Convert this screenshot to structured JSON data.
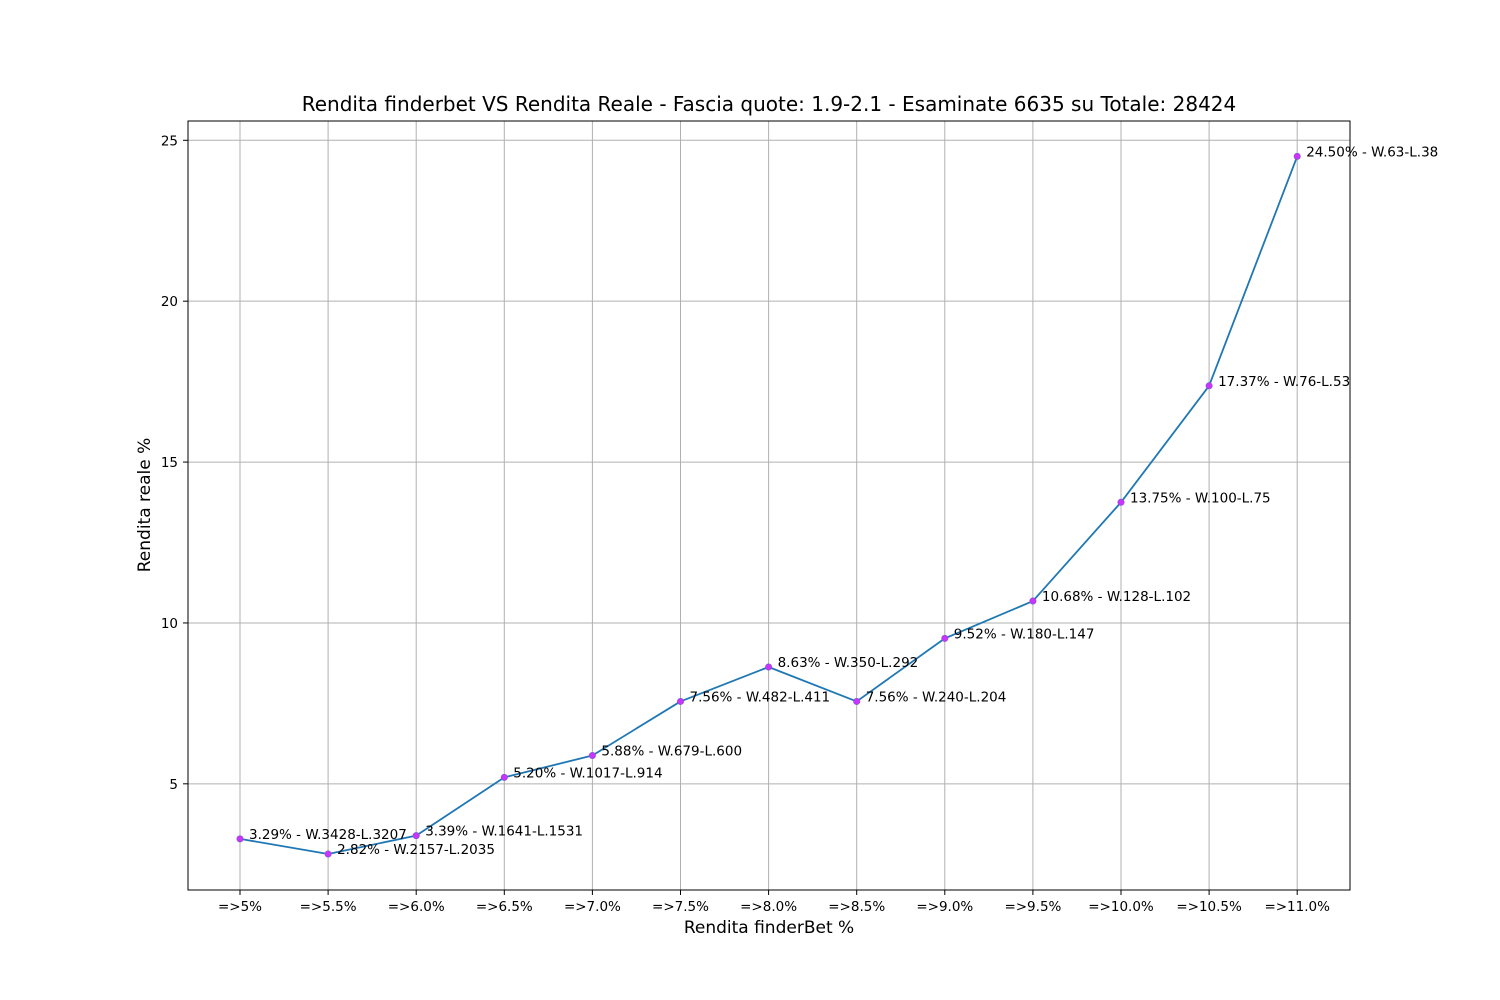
{
  "chart_data": {
    "type": "line",
    "title": "Rendita finderbet VS Rendita Reale - Fascia quote: 1.9-2.1 - Esaminate 6635 su Totale: 28424",
    "xlabel": "Rendita finderBet %",
    "ylabel": "Rendita reale %",
    "categories": [
      "=>5%",
      "=>5.5%",
      "=>6.0%",
      "=>6.5%",
      "=>7.0%",
      "=>7.5%",
      "=>8.0%",
      "=>8.5%",
      "=>9.0%",
      "=>9.5%",
      "=>10.0%",
      "=>10.5%",
      "=>11.0%"
    ],
    "values": [
      3.29,
      2.82,
      3.39,
      5.2,
      5.88,
      7.56,
      8.63,
      7.56,
      9.52,
      10.68,
      13.75,
      17.37,
      24.5
    ],
    "point_labels": [
      "3.29% - W.3428-L.3207",
      "2.82% - W.2157-L.2035",
      "3.39% - W.1641-L.1531",
      "5.20% - W.1017-L.914",
      "5.88% - W.679-L.600",
      "7.56% - W.482-L.411",
      "8.63% - W.350-L.292",
      "7.56% - W.240-L.204",
      "9.52% - W.180-L.147",
      "10.68% - W.128-L.102",
      "13.75% - W.100-L.75",
      "17.37% - W.76-L.53",
      "24.50% - W.63-L.38"
    ],
    "ylim": [
      1.7,
      25.6
    ],
    "yticks": [
      5,
      10,
      15,
      20,
      25
    ],
    "grid": true,
    "line_color": "#1f77b4",
    "marker_color": "#cc33ff"
  }
}
